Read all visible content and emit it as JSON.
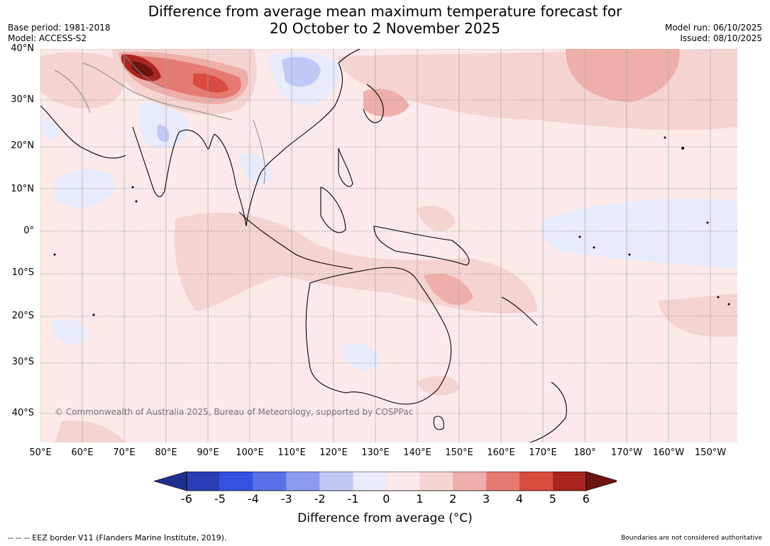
{
  "title": {
    "line1": "Difference from average mean maximum temperature forecast for",
    "line2": "20 October to 2 November 2025"
  },
  "meta_left": {
    "base_period": "Base period: 1981-2018",
    "model": "Model: ACCESS-S2"
  },
  "meta_right": {
    "model_run": "Model run: 06/10/2025",
    "issued": "Issued: 08/10/2025"
  },
  "map": {
    "copyright": "© Commonwealth of Australia 2025, Bureau of Meteorology, supported by COSPPac",
    "lat_labels": [
      "40°N",
      "30°N",
      "20°N",
      "10°N",
      "0°",
      "10°S",
      "20°S",
      "30°S",
      "40°S"
    ],
    "lon_labels": [
      "50°E",
      "60°E",
      "70°E",
      "80°E",
      "90°E",
      "100°E",
      "110°E",
      "120°E",
      "130°E",
      "140°E",
      "150°E",
      "160°E",
      "170°E",
      "180°",
      "170°W",
      "160°W",
      "150°W"
    ]
  },
  "colorbar": {
    "ticks": [
      "-6",
      "-5",
      "-4",
      "-3",
      "-2",
      "-1",
      "0",
      "1",
      "2",
      "3",
      "4",
      "5",
      "6"
    ],
    "colors": [
      "#1d2f8c",
      "#2a3fb5",
      "#3551e0",
      "#5a71e8",
      "#8b9bef",
      "#c0c8f6",
      "#e8ebfb",
      "#fbeae9",
      "#f5d3d1",
      "#eeaeaa",
      "#e47a72",
      "#d94a3f",
      "#a8261f",
      "#6e140f"
    ],
    "title": "Difference from average (°C)"
  },
  "footer": {
    "eez": "-- -- -- EEZ border V11 (Flanders Marine Institute, 2019).",
    "disclaimer": "Boundaries are not considered authoritative"
  }
}
